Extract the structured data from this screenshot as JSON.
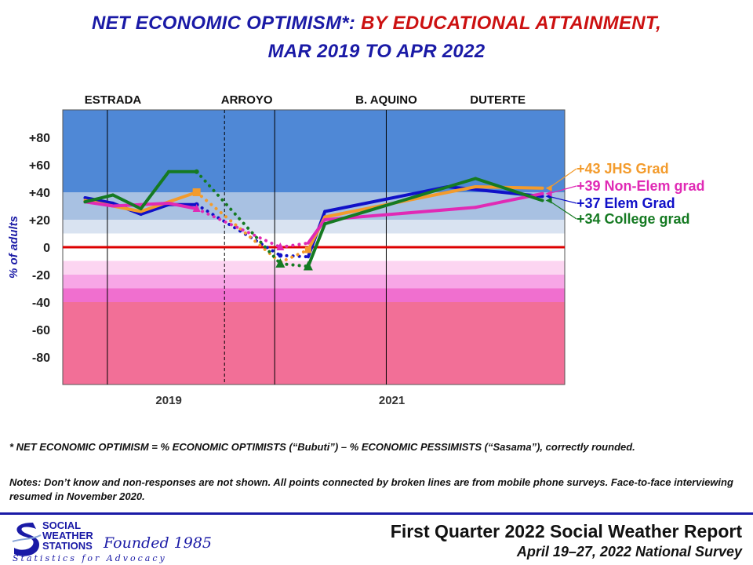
{
  "title": {
    "part1": "NET ECONOMIC  OPTIMISM*:",
    "part2": "BY EDUCATIONAL  ATTAINMENT,",
    "line2": "MAR 2019 TO APR 2022"
  },
  "colors": {
    "title_blue": "#1a1aa6",
    "title_red": "#cc1111",
    "band_dark_blue": "#4f88d6",
    "band_mid_blue": "#a8c1e2",
    "band_light_blue": "#d9e3f1",
    "band_light_pink": "#fcd5f1",
    "band_mid_pink": "#f7a6e6",
    "band_pink": "#f06fcf",
    "band_dark_pink": "#f26f97",
    "zero_line": "#dd0000"
  },
  "chart_data": {
    "type": "line",
    "ylabel": "% of adults",
    "ylim": [
      -100,
      100
    ],
    "yticks": [
      {
        "value": 80,
        "label": "+80"
      },
      {
        "value": 60,
        "label": "+60"
      },
      {
        "value": 40,
        "label": "+40"
      },
      {
        "value": 20,
        "label": "+20"
      },
      {
        "value": 0,
        "label": "0"
      },
      {
        "value": -20,
        "label": "-20"
      },
      {
        "value": -40,
        "label": "-40"
      },
      {
        "value": -60,
        "label": "-60"
      },
      {
        "value": -80,
        "label": "-80"
      }
    ],
    "xlim": [
      2018.05,
      2022.55
    ],
    "xticks": [
      {
        "value": 2019,
        "label": "2019"
      },
      {
        "value": 2021,
        "label": "2021"
      }
    ],
    "presidents": [
      {
        "label": "ESTRADA",
        "x": 2018.5
      },
      {
        "label": "ARROYO",
        "x": 2019.7
      },
      {
        "label": "B. AQUINO",
        "x": 2020.95
      },
      {
        "label": "DUTERTE",
        "x": 2021.95
      }
    ],
    "grid": "vertical separators at 2018.45, 2019.95 (2020.45 solid); dashed separator at 2019.5",
    "series": [
      {
        "name": "Elem Grad",
        "color": "#1010c8",
        "final_label": "+37 Elem Grad",
        "points": [
          {
            "x": 2018.25,
            "y": 36,
            "mode": "solid"
          },
          {
            "x": 2018.5,
            "y": 32,
            "mode": "solid"
          },
          {
            "x": 2018.75,
            "y": 24,
            "mode": "solid"
          },
          {
            "x": 2019.0,
            "y": 31,
            "mode": "solid"
          },
          {
            "x": 2019.25,
            "y": 31,
            "mode": "dotted"
          },
          {
            "x": 2020.0,
            "y": -6,
            "mode": "dotted"
          },
          {
            "x": 2020.25,
            "y": -7,
            "mode": "solid"
          },
          {
            "x": 2020.4,
            "y": 26,
            "mode": "solid"
          },
          {
            "x": 2021.5,
            "y": 44,
            "mode": "solid"
          },
          {
            "x": 2022.35,
            "y": 37,
            "mode": "solid"
          }
        ]
      },
      {
        "name": "JHS Grad",
        "color": "#f39b2c",
        "final_label": "+43 JHS Grad",
        "points": [
          {
            "x": 2018.25,
            "y": 34,
            "mode": "solid"
          },
          {
            "x": 2018.75,
            "y": 26,
            "mode": "solid"
          },
          {
            "x": 2019.25,
            "y": 40,
            "mode": "dotted"
          },
          {
            "x": 2020.0,
            "y": -11,
            "mode": "dotted"
          },
          {
            "x": 2020.25,
            "y": -2,
            "mode": "solid"
          },
          {
            "x": 2020.4,
            "y": 22,
            "mode": "solid"
          },
          {
            "x": 2021.75,
            "y": 44,
            "mode": "solid"
          },
          {
            "x": 2022.35,
            "y": 43,
            "mode": "solid"
          }
        ]
      },
      {
        "name": "Non-Elem grad",
        "color": "#e02ab5",
        "final_label": "+39 Non-Elem grad",
        "points": [
          {
            "x": 2018.25,
            "y": 33,
            "mode": "solid"
          },
          {
            "x": 2018.5,
            "y": 30,
            "mode": "solid"
          },
          {
            "x": 2018.75,
            "y": 31,
            "mode": "solid"
          },
          {
            "x": 2019.0,
            "y": 32,
            "mode": "solid"
          },
          {
            "x": 2019.25,
            "y": 28,
            "mode": "dotted"
          },
          {
            "x": 2020.0,
            "y": 0,
            "mode": "dotted"
          },
          {
            "x": 2020.25,
            "y": 3,
            "mode": "solid"
          },
          {
            "x": 2020.4,
            "y": 20,
            "mode": "solid"
          },
          {
            "x": 2021.75,
            "y": 29,
            "mode": "solid"
          },
          {
            "x": 2022.35,
            "y": 39,
            "mode": "solid"
          }
        ]
      },
      {
        "name": "College grad",
        "color": "#157a22",
        "final_label": "+34 College grad",
        "points": [
          {
            "x": 2018.25,
            "y": 33,
            "mode": "solid"
          },
          {
            "x": 2018.5,
            "y": 38,
            "mode": "solid"
          },
          {
            "x": 2018.75,
            "y": 28,
            "mode": "solid"
          },
          {
            "x": 2019.0,
            "y": 55,
            "mode": "solid"
          },
          {
            "x": 2019.25,
            "y": 55,
            "mode": "dotted"
          },
          {
            "x": 2020.0,
            "y": -12,
            "mode": "dotted"
          },
          {
            "x": 2020.25,
            "y": -14,
            "mode": "solid"
          },
          {
            "x": 2020.4,
            "y": 17,
            "mode": "solid"
          },
          {
            "x": 2021.75,
            "y": 50,
            "mode": "solid"
          },
          {
            "x": 2022.35,
            "y": 34,
            "mode": "solid"
          }
        ]
      }
    ]
  },
  "footnotes": {
    "definition": "* NET ECONOMIC OPTIMISM =  % ECONOMIC OPTIMISTS (“Bubuti”) –  % ECONOMIC PESSIMISTS (“Sasama”), correctly rounded.",
    "notes": "Notes: Don’t know and non-responses are not shown. All points connected by broken lines are from mobile phone surveys. Face-to-face  interviewing resumed in November 2020."
  },
  "logo": {
    "line1": "SOCIAL",
    "line2": "WEATHER",
    "line3": "STATIONS",
    "founded": "Founded 1985",
    "tagline": "Statistics for Advocacy"
  },
  "report": {
    "title": "First Quarter 2022 Social Weather Report",
    "subtitle": "April 19–27, 2022 National Survey"
  }
}
